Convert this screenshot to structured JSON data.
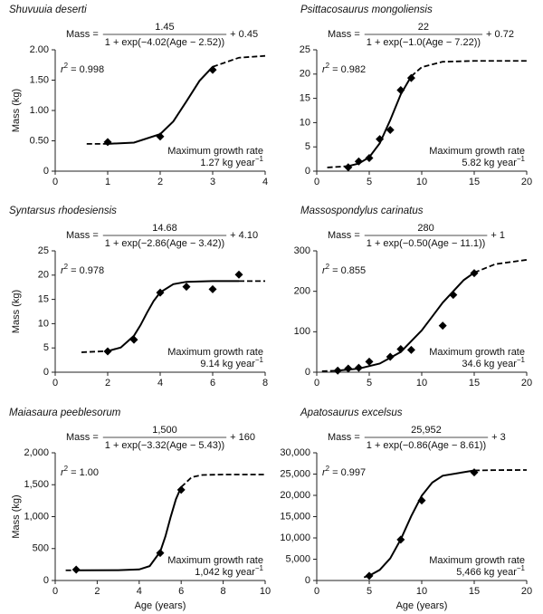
{
  "chart_data": [
    {
      "type": "scatter",
      "title": "Shuvuuia deserti",
      "color": "#000000",
      "ylabel": "Mass (kg)",
      "equation": {
        "lhs": "Mass =",
        "numerator": "1.45",
        "denominator": "1 + exp(−4.02(Age − 2.52))",
        "offset": "+ 0.45"
      },
      "r2": {
        "symbol": "r",
        "exponent": "2",
        "value": "= 0.998"
      },
      "growth": {
        "label": "Maximum growth rate",
        "rate": "1.27 kg year",
        "exponent": "−1"
      },
      "x": [
        1,
        2,
        3
      ],
      "values": [
        0.48,
        0.57,
        1.67
      ],
      "curve": {
        "x": [
          0.6,
          1,
          1.5,
          2,
          2.25,
          2.5,
          2.75,
          3,
          3.5,
          4
        ],
        "values": [
          0.45,
          0.45,
          0.47,
          0.61,
          0.82,
          1.15,
          1.49,
          1.72,
          1.87,
          1.9
        ]
      },
      "xlim": [
        0,
        4
      ],
      "xticks": [
        0,
        1,
        2,
        3,
        4
      ],
      "ylim": [
        0,
        2
      ],
      "yticks": [
        0,
        {
          "value": 0.5,
          "label": "0.50"
        },
        {
          "value": 1,
          "label": "1.00"
        },
        {
          "value": 1.5,
          "label": "1.50"
        },
        {
          "value": 2,
          "label": "2.00"
        }
      ]
    },
    {
      "type": "scatter",
      "title": "Psittacosaurus mongoliensis",
      "color": "#000000",
      "equation": {
        "lhs": "Mass =",
        "numerator": "22",
        "denominator": "1 + exp(−1.0(Age − 7.22))",
        "offset": "+ 0.72"
      },
      "r2": {
        "symbol": "r",
        "exponent": "2",
        "value": "= 0.982"
      },
      "growth": {
        "label": "Maximum growth rate",
        "rate": "5.82 kg year",
        "exponent": "−1"
      },
      "x": [
        3,
        4,
        5,
        6,
        7,
        8,
        9
      ],
      "values": [
        0.8,
        2,
        2.7,
        6.6,
        8.5,
        16.7,
        19.2
      ],
      "curve": {
        "x": [
          1,
          3,
          4,
          5,
          6,
          7,
          8,
          9,
          10,
          12,
          15,
          20
        ],
        "values": [
          0.76,
          1.04,
          1.57,
          2.88,
          5.73,
          10.52,
          15.81,
          19.54,
          21.43,
          22.54,
          22.71,
          22.72
        ]
      },
      "xlim": [
        0,
        20
      ],
      "xticks": [
        0,
        5,
        10,
        15,
        20
      ],
      "ylim": [
        0,
        25
      ],
      "yticks": [
        0,
        5,
        10,
        15,
        20,
        25
      ]
    },
    {
      "type": "scatter",
      "title": "Syntarsus rhodesiensis",
      "color": "#000000",
      "ylabel": "Mass (kg)",
      "equation": {
        "lhs": "Mass =",
        "numerator": "14.68",
        "denominator": "1 + exp(−2.86(Age − 3.42))",
        "offset": "+ 4.10"
      },
      "r2": {
        "symbol": "r",
        "exponent": "2",
        "value": "= 0.978"
      },
      "growth": {
        "label": "Maximum growth rate",
        "rate": "9.14 kg year",
        "exponent": "−1"
      },
      "x": [
        2,
        3,
        4,
        5,
        6,
        7
      ],
      "values": [
        4.3,
        6.7,
        16.4,
        17.6,
        17.1,
        20.1
      ],
      "curve": {
        "x": [
          1,
          2,
          2.5,
          3,
          3.25,
          3.5,
          3.75,
          4,
          4.5,
          5,
          6,
          7,
          8
        ],
        "values": [
          4.11,
          4.35,
          5.09,
          7.5,
          9.69,
          12.28,
          14.67,
          16.44,
          18.14,
          18.62,
          18.77,
          18.78,
          18.78
        ]
      },
      "xlim": [
        0,
        8
      ],
      "xticks": [
        0,
        2,
        4,
        6,
        8
      ],
      "ylim": [
        0,
        25
      ],
      "yticks": [
        0,
        5,
        10,
        15,
        20,
        25
      ]
    },
    {
      "type": "scatter",
      "title": "Massospondylus carinatus",
      "color": "#000000",
      "equation": {
        "lhs": "Mass =",
        "numerator": "280",
        "denominator": "1 + exp(−0.50(Age − 11.1))",
        "offset": "+ 1"
      },
      "r2": {
        "symbol": "r",
        "exponent": "2",
        "value": "= 0.855"
      },
      "growth": {
        "label": "Maximum growth rate",
        "rate": "34.6 kg year",
        "exponent": "−1"
      },
      "x": [
        2,
        3,
        4,
        5,
        7,
        8,
        9,
        12,
        13,
        15
      ],
      "values": [
        4,
        9,
        11,
        26,
        38,
        57,
        55,
        115,
        191,
        245
      ],
      "curve": {
        "x": [
          0.5,
          2,
          4,
          6,
          8,
          10,
          11,
          12,
          14,
          15,
          17,
          20
        ],
        "values": [
          2.4,
          3.9,
          8.8,
          21.3,
          50,
          103.4,
          137.5,
          172,
          227.8,
          246.2,
          267.1,
          277.8
        ]
      },
      "xlim": [
        0,
        20
      ],
      "xticks": [
        0,
        5,
        10,
        15,
        20
      ],
      "ylim": [
        0,
        300
      ],
      "yticks": [
        0,
        100,
        200,
        300
      ]
    },
    {
      "type": "scatter",
      "title": "Maiasaura peeblesorum",
      "color": "#000000",
      "ylabel": "Mass (kg)",
      "xlabel": "Age (years)",
      "equation": {
        "lhs": "Mass =",
        "numerator": "1,500",
        "denominator": "1 + exp(−3.32(Age − 5.43))",
        "offset": "+ 160"
      },
      "r2": {
        "symbol": "r",
        "exponent": "2",
        "value": "= 1.00"
      },
      "growth": {
        "label": "Maximum growth rate",
        "rate": "1,042 kg year",
        "exponent": "−1"
      },
      "x": [
        1,
        5,
        6
      ],
      "values": [
        170,
        430,
        1420
      ],
      "curve": {
        "x": [
          0.5,
          1,
          3,
          4,
          4.5,
          5,
          5.25,
          5.5,
          5.75,
          6,
          6.5,
          7,
          8,
          10
        ],
        "values": [
          160,
          160,
          160.5,
          173,
          225,
          450,
          692,
          996,
          1274,
          1463,
          1618,
          1652,
          1660,
          1660
        ]
      },
      "xlim": [
        0,
        10
      ],
      "xticks": [
        0,
        2,
        4,
        6,
        8,
        10
      ],
      "ylim": [
        0,
        2000
      ],
      "yticks": [
        0,
        500,
        {
          "value": 1000,
          "label": "1,000"
        },
        {
          "value": 1500,
          "label": "1,500"
        },
        {
          "value": 2000,
          "label": "2,000"
        }
      ]
    },
    {
      "type": "scatter",
      "title": "Apatosaurus excelsus",
      "color": "#000000",
      "xlabel": "Age (years)",
      "equation": {
        "lhs": "Mass =",
        "numerator": "25,952",
        "denominator": "1 + exp(−0.86(Age − 8.61))",
        "offset": "+ 3"
      },
      "r2": {
        "symbol": "r",
        "exponent": "2",
        "value": "= 0.997"
      },
      "growth": {
        "label": "Maximum growth rate",
        "rate": "5,466 kg year",
        "exponent": "−1"
      },
      "x": [
        5,
        8,
        10,
        15
      ],
      "values": [
        1100,
        9600,
        18800,
        25400
      ],
      "curve": {
        "x": [
          4.5,
          5,
          6,
          7,
          8,
          9,
          10,
          11,
          12,
          15,
          17,
          20
        ],
        "values": [
          738,
          1117,
          2489,
          5195,
          9651,
          15126,
          19922,
          23009,
          24621,
          25849,
          25936,
          25954
        ]
      },
      "xlim": [
        0,
        20
      ],
      "xticks": [
        0,
        5,
        10,
        15,
        20
      ],
      "ylim": [
        0,
        30000
      ],
      "yticks": [
        0,
        {
          "value": 5000,
          "label": "5,000"
        },
        {
          "value": 10000,
          "label": "10,000"
        },
        {
          "value": 15000,
          "label": "15,000"
        },
        {
          "value": 20000,
          "label": "20,000"
        },
        {
          "value": 25000,
          "label": "25,000"
        },
        {
          "value": 30000,
          "label": "30,000"
        }
      ]
    }
  ]
}
